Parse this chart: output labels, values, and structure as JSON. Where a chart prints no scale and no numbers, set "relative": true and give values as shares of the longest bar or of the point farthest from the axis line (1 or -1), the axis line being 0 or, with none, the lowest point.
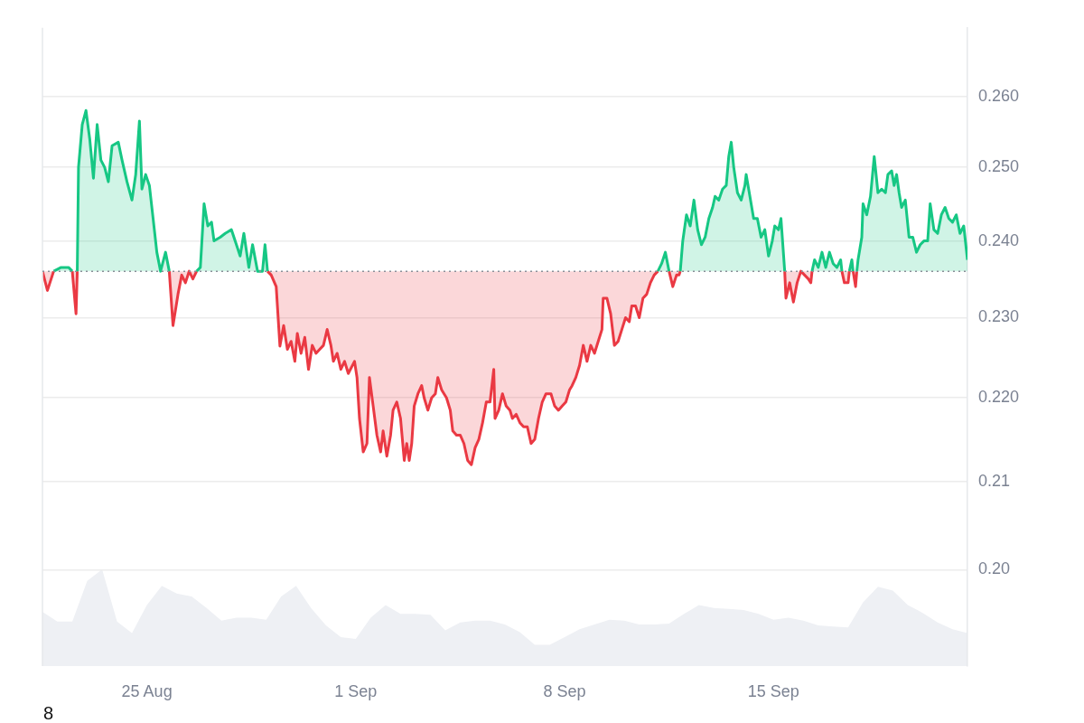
{
  "chart_data": [
    {
      "type": "area",
      "x": [
        "--08-21T12:00",
        "--08-21T16:00",
        "--08-21T21:00",
        "--08-22T03:00",
        "--08-22T09:00",
        "--08-22T12:00",
        "--08-22T15:00",
        "--08-22T16:00",
        "--08-22T17:00",
        "--08-22T20:00",
        "--08-22T23:00",
        "--08-23T02:00",
        "--08-23T05:00",
        "--08-23T08:00",
        "--08-23T11:00",
        "--08-23T14:00",
        "--08-23T17:00",
        "--08-23T20:00",
        "--08-24T01:00",
        "--08-24T04:00",
        "--08-24T08:00",
        "--08-24T12:00",
        "--08-24T15:00",
        "--08-24T18:00",
        "--08-24T20:00",
        "--08-24T23:00",
        "--08-25T02:00",
        "--08-25T05:00",
        "--08-25T08:00",
        "--08-25T11:00",
        "--08-25T15:00",
        "--08-25T18:00",
        "--08-25T21:00",
        "--08-26T01:00",
        "--08-26T04:00",
        "--08-26T07:00",
        "--08-26T10:00",
        "--08-26T13:00",
        "--08-26T16:00",
        "--08-26T19:00",
        "--08-26T22:00",
        "--08-27T01:00",
        "--08-27T04:00",
        "--08-27T06:00",
        "--08-27T11:00",
        "--08-27T15:00",
        "--08-27T20:00",
        "--08-28T00:00",
        "--08-28T03:00",
        "--08-28T06:00",
        "--08-28T10:00",
        "--08-28T13:00",
        "--08-28T17:00",
        "--08-28T20:00",
        "--08-28T21:00",
        "--08-28T23:00",
        "--08-29T01:00",
        "--08-29T04:00",
        "--08-29T08:00",
        "--08-29T11:00",
        "--08-29T14:00",
        "--08-29T17:00",
        "--08-29T20:00",
        "--08-29T23:00",
        "--08-30T01:00",
        "--08-30T04:00",
        "--08-30T07:00",
        "--08-30T10:00",
        "--08-30T13:00",
        "--08-30T16:00",
        "--08-30T19:00",
        "--08-30T22:00",
        "--08-31T01:00",
        "--08-31T04:00",
        "--08-31T06:00",
        "--08-31T09:00",
        "--08-31T12:00",
        "--08-31T15:00",
        "--08-31T18:00",
        "--08-31T23:00",
        "--09-01T01:00",
        "--09-01T03:00",
        "--09-01T06:00",
        "--09-01T09:00",
        "--09-01T11:00",
        "--09-01T14:00",
        "--09-01T17:00",
        "--09-01T20:00",
        "--09-01T22:00",
        "--09-02T01:00",
        "--09-02T04:00",
        "--09-02T06:00",
        "--09-02T09:00",
        "--09-02T12:00",
        "--09-02T15:00",
        "--09-02T17:00",
        "--09-02T19:00",
        "--09-02T21:00",
        "--09-02T23:00",
        "--09-03T02:00",
        "--09-03T05:00",
        "--09-03T07:00",
        "--09-03T10:00",
        "--09-03T13:00",
        "--09-03T16:00",
        "--09-03T18:00",
        "--09-03T21:00",
        "--09-04T01:00",
        "--09-04T04:00",
        "--09-04T06:00",
        "--09-04T09:00",
        "--09-04T12:00",
        "--09-04T15:00",
        "--09-04T18:00",
        "--09-04T21:00",
        "--09-05T00:00",
        "--09-05T03:00",
        "--09-05T06:00",
        "--09-05T09:00",
        "--09-05T12:00",
        "--09-05T15:00",
        "--09-05T16:00",
        "--09-05T19:00",
        "--09-05T22:00",
        "--09-06T01:00",
        "--09-06T04:00",
        "--09-06T06:00",
        "--09-06T09:00",
        "--09-06T12:00",
        "--09-06T15:00",
        "--09-06T18:00",
        "--09-06T21:00",
        "--09-07T00:00",
        "--09-07T03:00",
        "--09-07T06:00",
        "--09-07T09:00",
        "--09-07T13:00",
        "--09-07T16:00",
        "--09-07T19:00",
        "--09-07T22:00",
        "--09-08T01:00",
        "--09-08T04:00",
        "--09-08T06:00",
        "--09-08T09:00",
        "--09-08T12:00",
        "--09-08T15:00",
        "--09-08T18:00",
        "--09-08T21:00",
        "--09-09T00:00",
        "--09-09T03:00",
        "--09-09T06:00",
        "--09-09T07:00",
        "--09-09T10:00",
        "--09-09T13:00",
        "--09-09T16:00",
        "--09-09T19:00",
        "--09-09T22:00",
        "--09-10T01:00",
        "--09-10T04:00",
        "--09-10T06:00",
        "--09-10T09:00",
        "--09-10T12:00",
        "--09-10T15:00",
        "--09-10T18:00",
        "--09-10T21:00",
        "--09-11T00:00",
        "--09-11T03:00",
        "--09-11T06:00",
        "--09-11T09:00",
        "--09-11T12:00",
        "--09-11T15:00",
        "--09-11T18:00",
        "--09-11T20:00",
        "--09-11T21:00",
        "--09-11T23:00",
        "--09-12T02:00",
        "--09-12T05:00",
        "--09-12T08:00",
        "--09-12T11:00",
        "--09-12T14:00",
        "--09-12T17:00",
        "--09-12T20:00",
        "--09-12T23:00",
        "--09-13T01:00",
        "--09-13T04:00",
        "--09-13T07:00",
        "--09-13T10:00",
        "--09-13T12:00",
        "--09-13T14:00",
        "--09-13T16:00",
        "--09-13T19:00",
        "--09-13T22:00",
        "--09-14T01:00",
        "--09-14T02:00",
        "--09-14T05:00",
        "--09-14T08:00",
        "--09-14T11:00",
        "--09-14T14:00",
        "--09-14T17:00",
        "--09-14T20:00",
        "--09-14T23:00",
        "--09-15T01:00",
        "--09-15T04:00",
        "--09-15T06:00",
        "--09-15T09:00",
        "--09-15T10:00",
        "--09-15T13:00",
        "--09-15T16:00",
        "--09-15T19:00",
        "--09-15T22:00",
        "--09-16T01:00",
        "--09-16T04:00",
        "--09-16T06:00",
        "--09-16T07:00",
        "--09-16T09:00",
        "--09-16T12:00",
        "--09-16T15:00",
        "--09-16T18:00",
        "--09-16T21:00",
        "--09-17T00:00",
        "--09-17T03:00",
        "--09-17T06:00",
        "--09-17T07:00",
        "--09-17T09:00",
        "--09-17T12:00",
        "--09-17T13:00",
        "--09-17T15:00",
        "--09-17T16:00",
        "--09-17T18:00",
        "--09-17T19:00",
        "--09-17T20:00",
        "--09-17T23:00",
        "--09-18T00:00",
        "--09-18T03:00",
        "--09-18T06:00",
        "--09-18T09:00",
        "--09-18T12:00",
        "--09-18T15:00",
        "--09-18T18:00",
        "--09-18T20:00",
        "--09-18T23:00",
        "--09-19T01:00",
        "--09-19T03:00",
        "--09-19T05:00",
        "--09-19T07:00",
        "--09-19T10:00",
        "--09-19T13:00",
        "--09-19T16:00",
        "--09-19T19:00",
        "--09-19T22:00",
        "--09-20T01:00",
        "--09-20T04:00",
        "--09-20T06:00",
        "--09-20T09:00",
        "--09-20T12:00",
        "--09-20T15:00",
        "--09-20T18:00",
        "--09-20T21:00",
        "--09-21T00:00",
        "--09-21T03:00",
        "--09-21T06:00",
        "--09-21T09:00",
        "--09-21T12:00"
      ],
      "series": [
        {
          "color": "#16c784",
          "values": [
            null,
            null,
            0.236,
            0.2365,
            0.2365,
            0.236,
            null,
            0.236,
            0.25,
            0.256,
            0.258,
            0.254,
            0.2485,
            0.256,
            0.251,
            0.25,
            0.248,
            0.253,
            0.2535,
            0.251,
            0.248,
            0.2455,
            0.249,
            0.2565,
            0.247,
            0.249,
            0.2475,
            0.243,
            0.2385,
            0.236,
            0.2385,
            0.236,
            null,
            null,
            null,
            null,
            null,
            null,
            0.236,
            0.2365,
            0.245,
            0.242,
            0.2425,
            0.24,
            0.2405,
            0.241,
            0.2415,
            0.2395,
            0.238,
            0.241,
            0.2365,
            0.2395,
            0.236,
            0.236,
            0.236,
            0.2395,
            0.236,
            null,
            null,
            null,
            null,
            null,
            null,
            null,
            null,
            null,
            null,
            null,
            null,
            null,
            null,
            null,
            null,
            null,
            null,
            null,
            null,
            null,
            null,
            null,
            null,
            null,
            null,
            null,
            null,
            null,
            null,
            null,
            null,
            null,
            null,
            null,
            null,
            null,
            null,
            null,
            null,
            null,
            null,
            null,
            null,
            null,
            null,
            null,
            null,
            null,
            null,
            null,
            null,
            null,
            null,
            null,
            null,
            null,
            null,
            null,
            null,
            null,
            null,
            null,
            null,
            null,
            null,
            null,
            null,
            null,
            null,
            null,
            null,
            null,
            null,
            null,
            null,
            null,
            null,
            null,
            null,
            null,
            null,
            null,
            null,
            null,
            null,
            null,
            null,
            null,
            null,
            null,
            null,
            null,
            null,
            null,
            null,
            null,
            null,
            null,
            null,
            null,
            null,
            null,
            null,
            null,
            null,
            null,
            null,
            null,
            0.236,
            0.237,
            0.2385,
            0.236,
            null,
            null,
            null,
            0.236,
            0.24,
            0.2435,
            0.242,
            0.2455,
            0.2415,
            0.2395,
            0.2405,
            0.243,
            0.2445,
            0.246,
            0.2455,
            0.247,
            0.2475,
            0.2515,
            0.2535,
            0.25,
            0.2465,
            0.2455,
            0.2475,
            0.249,
            0.246,
            0.243,
            0.243,
            0.2405,
            0.2415,
            0.238,
            0.24,
            0.242,
            0.2415,
            0.243,
            0.236,
            null,
            null,
            null,
            null,
            null,
            null,
            null,
            null,
            0.236,
            0.2375,
            0.2365,
            0.2385,
            0.2365,
            0.2385,
            0.237,
            0.2365,
            0.2375,
            0.236,
            null,
            null,
            0.236,
            0.2375,
            0.236,
            null,
            0.236,
            0.2375,
            0.2405,
            0.245,
            0.2435,
            0.246,
            0.2515,
            0.2465,
            0.247,
            0.2465,
            0.249,
            0.2495,
            0.2475,
            0.249,
            0.2465,
            0.2445,
            0.2455,
            0.2405,
            0.2405,
            0.2385,
            0.2395,
            0.24,
            0.24,
            0.245,
            0.2415,
            0.241,
            0.2435,
            0.2445,
            0.243,
            0.2425,
            0.2435,
            0.241,
            0.242,
            0.2375
          ]
        },
        {
          "color": "#ea3943",
          "values": [
            0.236,
            0.2335,
            0.236,
            null,
            null,
            0.236,
            0.2305,
            0.236,
            null,
            null,
            null,
            null,
            null,
            null,
            null,
            null,
            null,
            null,
            null,
            null,
            null,
            null,
            null,
            null,
            null,
            null,
            null,
            null,
            null,
            null,
            null,
            0.236,
            0.229,
            0.233,
            0.2355,
            0.2345,
            0.236,
            0.235,
            0.236,
            null,
            null,
            null,
            null,
            null,
            null,
            null,
            null,
            null,
            null,
            null,
            null,
            null,
            null,
            null,
            null,
            null,
            0.236,
            0.2355,
            0.234,
            0.2264,
            0.229,
            0.226,
            0.227,
            0.2245,
            0.228,
            0.2255,
            0.2275,
            0.2235,
            0.2265,
            0.2255,
            0.226,
            0.2265,
            0.2285,
            0.2265,
            0.2245,
            0.2255,
            0.2235,
            0.2245,
            0.223,
            0.2245,
            0.2225,
            0.2175,
            0.2135,
            0.2145,
            0.2225,
            0.219,
            0.2155,
            0.2135,
            0.216,
            0.213,
            0.2155,
            0.2185,
            0.2195,
            0.2175,
            0.2125,
            0.2145,
            0.2125,
            0.2145,
            0.219,
            0.2205,
            0.2215,
            0.22,
            0.2185,
            0.22,
            0.2205,
            0.2225,
            0.221,
            0.22,
            0.2185,
            0.216,
            0.2155,
            0.2155,
            0.2145,
            0.2125,
            0.212,
            0.214,
            0.215,
            0.217,
            0.2195,
            0.2195,
            0.2235,
            0.2175,
            0.2185,
            0.2205,
            0.219,
            0.2185,
            0.2175,
            0.218,
            0.217,
            0.2165,
            0.2165,
            0.2145,
            0.215,
            0.2175,
            0.2195,
            0.2205,
            0.2205,
            0.219,
            0.2185,
            0.219,
            0.2195,
            0.221,
            0.2215,
            0.2225,
            0.224,
            0.2265,
            0.2245,
            0.2265,
            0.2255,
            0.227,
            0.2285,
            0.2325,
            0.2325,
            0.2305,
            0.2265,
            0.227,
            0.2285,
            0.23,
            0.2295,
            0.2315,
            0.2315,
            0.23,
            0.2325,
            0.233,
            0.2345,
            0.2355,
            0.236,
            null,
            null,
            0.236,
            0.234,
            0.2355,
            0.2355,
            0.236,
            null,
            null,
            null,
            null,
            null,
            null,
            null,
            null,
            null,
            null,
            null,
            null,
            null,
            null,
            null,
            null,
            null,
            null,
            null,
            null,
            null,
            null,
            null,
            null,
            null,
            null,
            null,
            null,
            null,
            null,
            0.236,
            0.2325,
            0.2345,
            0.232,
            0.2345,
            0.236,
            0.2355,
            0.235,
            0.2345,
            0.236,
            null,
            null,
            null,
            null,
            null,
            null,
            null,
            null,
            0.236,
            0.2345,
            0.2345,
            0.236,
            null,
            0.236,
            0.234,
            0.236,
            null,
            null,
            null,
            null,
            null,
            null,
            null,
            null,
            null,
            null,
            null,
            null,
            null,
            null,
            null,
            null,
            null,
            null,
            null,
            null,
            null,
            null,
            null,
            null,
            null,
            null,
            null,
            null,
            null,
            null,
            null,
            null,
            null
          ]
        }
      ],
      "xlim": [
        "--08-21T12:00",
        "--09-21T12:00"
      ],
      "xticks": [
        {
          "value": "--08-25",
          "label": "25 Aug"
        },
        {
          "value": "--09-01",
          "label": "1 Sep"
        },
        {
          "value": "--09-08",
          "label": "8 Sep"
        },
        {
          "value": "--09-15",
          "label": "15 Sep"
        }
      ],
      "ylim": [
        0.1896,
        0.2701
      ],
      "yticks": [
        {
          "value": 0.2,
          "label": "0.20"
        },
        {
          "value": 0.21,
          "label": "0.21"
        },
        {
          "value": 0.22,
          "label": "0.220"
        },
        {
          "value": 0.23,
          "label": "0.230"
        },
        {
          "value": 0.24,
          "label": "0.240"
        },
        {
          "value": 0.25,
          "label": "0.250"
        },
        {
          "value": 0.26,
          "label": "0.260"
        }
      ],
      "log": true,
      "grid": "y",
      "ref_lines": [
        {
          "axis": "y",
          "value": 0.236,
          "color": "#8a8f99",
          "line_style": "dotted"
        }
      ],
      "annotations": [
        "8"
      ]
    },
    {
      "type": "area",
      "relative": true,
      "tick_labels": false,
      "color": "#eef0f4",
      "categories": [
        null,
        null,
        null,
        null,
        null,
        null,
        null,
        null,
        null,
        null,
        null,
        null,
        null,
        null,
        null,
        null,
        null,
        null,
        null,
        null,
        null,
        null,
        null,
        null,
        null,
        null,
        null,
        null,
        null,
        null,
        null,
        null,
        null,
        null,
        null,
        null,
        null,
        null,
        null,
        null,
        null,
        null,
        null,
        null,
        null,
        null,
        null,
        null,
        null,
        null,
        null,
        null,
        null,
        null,
        null,
        null,
        null,
        null,
        null,
        null,
        null,
        null,
        null
      ],
      "values": [
        0.56,
        0.46,
        0.46,
        0.88,
        1,
        0.46,
        0.34,
        0.63,
        0.83,
        0.75,
        0.72,
        0.6,
        0.47,
        0.5,
        0.5,
        0.48,
        0.72,
        0.83,
        0.6,
        0.42,
        0.3,
        0.28,
        0.5,
        0.63,
        0.54,
        0.54,
        0.53,
        0.37,
        0.45,
        0.47,
        0.47,
        0.43,
        0.35,
        0.22,
        0.22,
        0.3,
        0.38,
        0.43,
        0.48,
        0.47,
        0.43,
        0.43,
        0.44,
        0.54,
        0.63,
        0.6,
        0.59,
        0.58,
        0.54,
        0.48,
        0.5,
        0.47,
        0.42,
        0.41,
        0.4,
        0.66,
        0.82,
        0.78,
        0.63,
        0.55,
        0.45,
        0.38,
        0.34
      ]
    }
  ]
}
